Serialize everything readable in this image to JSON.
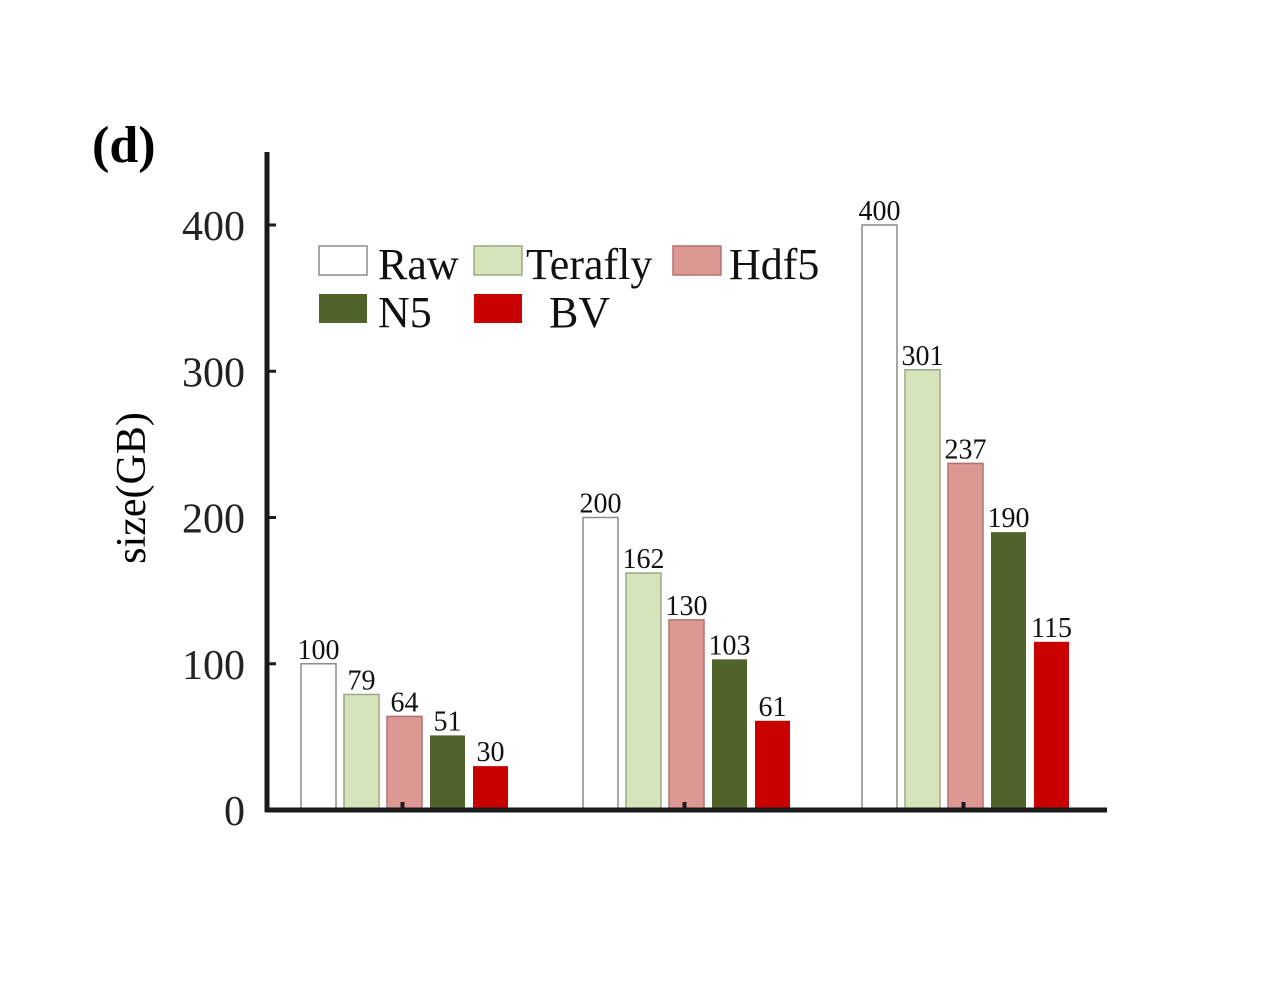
{
  "panel_label": "(d)",
  "colors": {
    "Raw": "#ffffff",
    "Terafly": "#d6e4bc",
    "Hdf5": "#de9893",
    "N5": "#4f632b",
    "BV": "#c80000",
    "axis": "#1a1a1a"
  },
  "chart_data": {
    "type": "bar",
    "title": "",
    "xlabel": "",
    "ylabel": "size(GB)",
    "ylim": [
      0,
      400
    ],
    "yticks": [
      "0",
      "100",
      "200",
      "300",
      "400"
    ],
    "categories": [
      "",
      "",
      ""
    ],
    "legend_position": "top-left",
    "grid": false,
    "series": [
      {
        "name": "Raw",
        "values": [
          100,
          200,
          400
        ]
      },
      {
        "name": "Terafly",
        "values": [
          79,
          162,
          301
        ]
      },
      {
        "name": "Hdf5",
        "values": [
          64,
          130,
          237
        ]
      },
      {
        "name": "N5",
        "values": [
          51,
          103,
          190
        ]
      },
      {
        "name": "BV",
        "values": [
          30,
          61,
          115
        ]
      }
    ]
  }
}
